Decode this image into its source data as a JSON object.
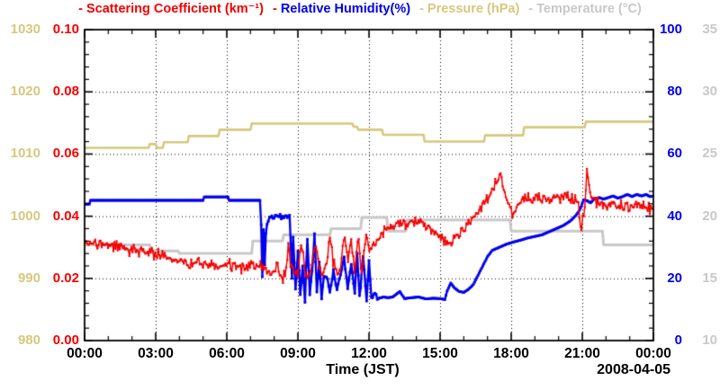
{
  "legend": {
    "entries": [
      {
        "dash": "-",
        "label": "Scattering Coefficient (km⁻¹)",
        "color": "#f50000",
        "dash_color": "#f50000"
      },
      {
        "dash": "-",
        "label": "Relative Humidity(%)",
        "color": "#0000ee",
        "dash_color": "#f50000"
      },
      {
        "dash": "-",
        "label": "Pressure (hPa)",
        "color": "#d6c87d",
        "dash_color": "#d6c87d"
      },
      {
        "dash": "-",
        "label": "Temperature (°C)",
        "color": "#c8c8c8",
        "dash_color": "#c8c8c8"
      }
    ]
  },
  "chart_data": {
    "type": "line",
    "xlabel": "Time (JST)",
    "date_label": "2008-04-05",
    "grid": "dotted, at major ticks",
    "x_axis": {
      "min": 0,
      "max": 24,
      "major": 3,
      "minor": 1,
      "tick_labels": [
        "00:00",
        "03:00",
        "06:00",
        "09:00",
        "12:00",
        "15:00",
        "18:00",
        "21:00",
        "00:00"
      ]
    },
    "y_axes": [
      {
        "name": "pressure",
        "label": "Pressure (hPa)",
        "min": 980,
        "max": 1030,
        "color": "#d6c87d",
        "ticks": [
          "980",
          "990",
          "1000",
          "1010",
          "1020",
          "1030"
        ]
      },
      {
        "name": "scattering",
        "label": "Scattering Coefficient (km⁻¹)",
        "min": 0,
        "max": 0.1,
        "color": "#f50000",
        "ticks": [
          "0.00",
          "0.02",
          "0.04",
          "0.06",
          "0.08",
          "0.10"
        ]
      },
      {
        "name": "humidity",
        "label": "Relative Humidity(%)",
        "min": 0,
        "max": 100,
        "color": "#0000ee",
        "ticks": [
          "0",
          "20",
          "40",
          "60",
          "80",
          "100"
        ]
      },
      {
        "name": "temperature",
        "label": "Temperature (°C)",
        "min": 10,
        "max": 35,
        "color": "#c8c8c8",
        "ticks": [
          "10",
          "15",
          "20",
          "25",
          "30",
          "35"
        ]
      }
    ],
    "series": [
      {
        "name": "Pressure",
        "axis": "pressure",
        "color": "#d6c87d",
        "width": 2.6,
        "points": [
          [
            0,
            1011
          ],
          [
            2.7,
            1011
          ],
          [
            2.75,
            1011.6
          ],
          [
            3.0,
            1011.6
          ],
          [
            3.05,
            1011
          ],
          [
            3.3,
            1011
          ],
          [
            3.35,
            1011.9
          ],
          [
            4.35,
            1011.9
          ],
          [
            4.4,
            1012.9
          ],
          [
            5.65,
            1012.9
          ],
          [
            5.7,
            1013.9
          ],
          [
            7.0,
            1013.9
          ],
          [
            7.05,
            1014.9
          ],
          [
            11.3,
            1014.9
          ],
          [
            11.35,
            1014.4
          ],
          [
            11.5,
            1014.4
          ],
          [
            11.55,
            1013.9
          ],
          [
            12.55,
            1013.9
          ],
          [
            12.6,
            1013.1
          ],
          [
            14.3,
            1013.1
          ],
          [
            14.35,
            1012
          ],
          [
            16.85,
            1012
          ],
          [
            16.9,
            1013
          ],
          [
            18.5,
            1013
          ],
          [
            18.55,
            1014.3
          ],
          [
            21.1,
            1014.3
          ],
          [
            21.15,
            1015.2
          ],
          [
            24,
            1015.2
          ]
        ]
      },
      {
        "name": "Temperature",
        "axis": "temperature",
        "color": "#c8c8c8",
        "width": 3,
        "points": [
          [
            0,
            17.7
          ],
          [
            2.75,
            17.7
          ],
          [
            2.8,
            17.2
          ],
          [
            3.95,
            17.2
          ],
          [
            4.0,
            17.0
          ],
          [
            7.05,
            17.0
          ],
          [
            7.1,
            18.0
          ],
          [
            8.35,
            18.0
          ],
          [
            8.4,
            18.5
          ],
          [
            10.35,
            18.5
          ],
          [
            10.4,
            19.0
          ],
          [
            11.65,
            19.0
          ],
          [
            11.7,
            19.9
          ],
          [
            12.75,
            19.9
          ],
          [
            12.8,
            18.8
          ],
          [
            13.55,
            18.8
          ],
          [
            13.6,
            19.7
          ],
          [
            17.95,
            19.7
          ],
          [
            18.0,
            18.8
          ],
          [
            21.85,
            18.8
          ],
          [
            21.9,
            17.7
          ],
          [
            24,
            17.7
          ]
        ]
      },
      {
        "name": "Relative Humidity",
        "axis": "humidity",
        "color": "#0000ee",
        "width": 2.4,
        "marker": 2.8,
        "resample": 0.05,
        "jitter": 0.55,
        "jitter_window": [
          7.4,
          12.5
        ],
        "points": [
          [
            0,
            43.9
          ],
          [
            0.2,
            43.9
          ],
          [
            0.25,
            45.1
          ],
          [
            5.0,
            45.1
          ],
          [
            5.05,
            46.2
          ],
          [
            6.05,
            46.2
          ],
          [
            6.1,
            45.1
          ],
          [
            7.4,
            45.1
          ],
          [
            7.45,
            37
          ],
          [
            7.5,
            21
          ],
          [
            7.55,
            36
          ],
          [
            7.6,
            24
          ],
          [
            7.65,
            35
          ],
          [
            7.75,
            38.5
          ],
          [
            7.9,
            39.5
          ],
          [
            8.1,
            40.2
          ],
          [
            8.3,
            39.5
          ],
          [
            8.5,
            39.8
          ],
          [
            8.65,
            40
          ],
          [
            8.7,
            31
          ],
          [
            8.75,
            20
          ],
          [
            8.8,
            33
          ],
          [
            8.9,
            17
          ],
          [
            9.0,
            28
          ],
          [
            9.1,
            15
          ],
          [
            9.2,
            24
          ],
          [
            9.3,
            13
          ],
          [
            9.4,
            33
          ],
          [
            9.5,
            15
          ],
          [
            9.6,
            22
          ],
          [
            9.7,
            34
          ],
          [
            9.8,
            16
          ],
          [
            9.9,
            25
          ],
          [
            10.0,
            13.5
          ],
          [
            10.1,
            20
          ],
          [
            10.2,
            21
          ],
          [
            10.35,
            16.5
          ],
          [
            10.5,
            22
          ],
          [
            10.65,
            16
          ],
          [
            10.8,
            21
          ],
          [
            10.95,
            27
          ],
          [
            11.1,
            17
          ],
          [
            11.25,
            24
          ],
          [
            11.4,
            15.5
          ],
          [
            11.5,
            28
          ],
          [
            11.6,
            13.5
          ],
          [
            11.75,
            27
          ],
          [
            11.9,
            13
          ],
          [
            12.0,
            26
          ],
          [
            12.1,
            13.5
          ],
          [
            12.25,
            15
          ],
          [
            12.4,
            13.5
          ],
          [
            12.6,
            14
          ],
          [
            12.8,
            13.8
          ],
          [
            13.0,
            14
          ],
          [
            13.3,
            15.8
          ],
          [
            13.5,
            13.5
          ],
          [
            13.8,
            13.8
          ],
          [
            14.1,
            14
          ],
          [
            14.4,
            13.4
          ],
          [
            14.7,
            13.6
          ],
          [
            15.0,
            13.5
          ],
          [
            15.2,
            13.2
          ],
          [
            15.3,
            16
          ],
          [
            15.45,
            18.5
          ],
          [
            15.6,
            17
          ],
          [
            15.8,
            15.8
          ],
          [
            16.0,
            15.5
          ],
          [
            16.2,
            16.5
          ],
          [
            16.4,
            18
          ],
          [
            16.6,
            21
          ],
          [
            16.8,
            24
          ],
          [
            17.0,
            27
          ],
          [
            17.2,
            29
          ],
          [
            17.5,
            30
          ],
          [
            17.8,
            31
          ],
          [
            18.1,
            31.7
          ],
          [
            18.4,
            32.3
          ],
          [
            18.7,
            33
          ],
          [
            19.0,
            33.5
          ],
          [
            19.3,
            34
          ],
          [
            19.6,
            35
          ],
          [
            19.9,
            36
          ],
          [
            20.2,
            37
          ],
          [
            20.5,
            38.5
          ],
          [
            20.7,
            40
          ],
          [
            20.85,
            41.5
          ],
          [
            20.95,
            43
          ],
          [
            21.05,
            45.3
          ],
          [
            21.2,
            45
          ],
          [
            21.35,
            44.3
          ],
          [
            21.5,
            45.5
          ],
          [
            21.7,
            46
          ],
          [
            21.9,
            45.5
          ],
          [
            22.1,
            46
          ],
          [
            22.3,
            46.5
          ],
          [
            22.5,
            45.8
          ],
          [
            22.7,
            46.3
          ],
          [
            22.9,
            47
          ],
          [
            23.1,
            46.3
          ],
          [
            23.3,
            47
          ],
          [
            23.5,
            46.5
          ],
          [
            23.7,
            47
          ],
          [
            23.85,
            46.3
          ],
          [
            24,
            46.5
          ]
        ]
      },
      {
        "name": "Scattering Coefficient",
        "axis": "scattering",
        "color": "#f50000",
        "width": 1.5,
        "marker": 2.2,
        "resample": 0.045,
        "jitter": 0.0011,
        "points": [
          [
            0,
            0.032
          ],
          [
            0.3,
            0.0312
          ],
          [
            0.6,
            0.031
          ],
          [
            0.9,
            0.0306
          ],
          [
            1.2,
            0.0302
          ],
          [
            1.5,
            0.03
          ],
          [
            1.8,
            0.0292
          ],
          [
            2.1,
            0.0288
          ],
          [
            2.4,
            0.0285
          ],
          [
            2.7,
            0.0283
          ],
          [
            3.0,
            0.0278
          ],
          [
            3.3,
            0.0272
          ],
          [
            3.6,
            0.0264
          ],
          [
            3.9,
            0.0258
          ],
          [
            4.2,
            0.0252
          ],
          [
            4.5,
            0.0248
          ],
          [
            4.8,
            0.0246
          ],
          [
            5.1,
            0.0244
          ],
          [
            5.4,
            0.0242
          ],
          [
            5.7,
            0.024
          ],
          [
            6.0,
            0.0242
          ],
          [
            6.3,
            0.024
          ],
          [
            6.6,
            0.0236
          ],
          [
            6.9,
            0.0237
          ],
          [
            7.2,
            0.024
          ],
          [
            7.5,
            0.0236
          ],
          [
            7.7,
            0.0222
          ],
          [
            7.9,
            0.021
          ],
          [
            8.05,
            0.0239
          ],
          [
            8.2,
            0.0225
          ],
          [
            8.35,
            0.0196
          ],
          [
            8.5,
            0.0222
          ],
          [
            8.6,
            0.0308
          ],
          [
            8.7,
            0.024
          ],
          [
            8.85,
            0.0222
          ],
          [
            9.0,
            0.0206
          ],
          [
            9.15,
            0.0318
          ],
          [
            9.3,
            0.0235
          ],
          [
            9.45,
            0.0198
          ],
          [
            9.6,
            0.024
          ],
          [
            9.75,
            0.0312
          ],
          [
            9.9,
            0.0245
          ],
          [
            10.05,
            0.0205
          ],
          [
            10.2,
            0.0238
          ],
          [
            10.35,
            0.033
          ],
          [
            10.5,
            0.025
          ],
          [
            10.65,
            0.0212
          ],
          [
            10.8,
            0.0235
          ],
          [
            10.95,
            0.0338
          ],
          [
            11.1,
            0.0262
          ],
          [
            11.25,
            0.032
          ],
          [
            11.4,
            0.0218
          ],
          [
            11.55,
            0.033
          ],
          [
            11.7,
            0.0215
          ],
          [
            11.85,
            0.0332
          ],
          [
            12.0,
            0.0285
          ],
          [
            12.15,
            0.0305
          ],
          [
            12.3,
            0.0322
          ],
          [
            12.45,
            0.0335
          ],
          [
            12.6,
            0.0345
          ],
          [
            12.75,
            0.0356
          ],
          [
            12.9,
            0.036
          ],
          [
            13.05,
            0.0365
          ],
          [
            13.2,
            0.0372
          ],
          [
            13.35,
            0.0378
          ],
          [
            13.5,
            0.0372
          ],
          [
            13.65,
            0.0378
          ],
          [
            13.8,
            0.0382
          ],
          [
            14.0,
            0.0376
          ],
          [
            14.2,
            0.038
          ],
          [
            14.4,
            0.0368
          ],
          [
            14.6,
            0.0355
          ],
          [
            14.8,
            0.0342
          ],
          [
            15.0,
            0.0332
          ],
          [
            15.2,
            0.0318
          ],
          [
            15.4,
            0.0312
          ],
          [
            15.6,
            0.033
          ],
          [
            15.8,
            0.0345
          ],
          [
            16.0,
            0.0362
          ],
          [
            16.2,
            0.0375
          ],
          [
            16.4,
            0.0398
          ],
          [
            16.6,
            0.042
          ],
          [
            16.8,
            0.0435
          ],
          [
            17.0,
            0.0455
          ],
          [
            17.2,
            0.0482
          ],
          [
            17.35,
            0.051
          ],
          [
            17.5,
            0.0528
          ],
          [
            17.65,
            0.0495
          ],
          [
            17.8,
            0.0452
          ],
          [
            17.95,
            0.042
          ],
          [
            18.1,
            0.0395
          ],
          [
            18.25,
            0.043
          ],
          [
            18.4,
            0.0448
          ],
          [
            18.6,
            0.0462
          ],
          [
            18.8,
            0.0452
          ],
          [
            19.0,
            0.0455
          ],
          [
            19.2,
            0.0468
          ],
          [
            19.4,
            0.0455
          ],
          [
            19.6,
            0.0448
          ],
          [
            19.8,
            0.046
          ],
          [
            20.0,
            0.0452
          ],
          [
            20.2,
            0.0458
          ],
          [
            20.4,
            0.0465
          ],
          [
            20.6,
            0.0458
          ],
          [
            20.8,
            0.0448
          ],
          [
            20.95,
            0.0358
          ],
          [
            21.1,
            0.042
          ],
          [
            21.2,
            0.0548
          ],
          [
            21.3,
            0.048
          ],
          [
            21.45,
            0.0452
          ],
          [
            21.6,
            0.0445
          ],
          [
            21.8,
            0.044
          ],
          [
            22.0,
            0.0438
          ],
          [
            22.2,
            0.0442
          ],
          [
            22.4,
            0.0435
          ],
          [
            22.6,
            0.0432
          ],
          [
            22.8,
            0.0436
          ],
          [
            23.0,
            0.0428
          ],
          [
            23.2,
            0.0432
          ],
          [
            23.4,
            0.0426
          ],
          [
            23.6,
            0.043
          ],
          [
            23.8,
            0.0424
          ],
          [
            24,
            0.0422
          ]
        ]
      }
    ]
  }
}
